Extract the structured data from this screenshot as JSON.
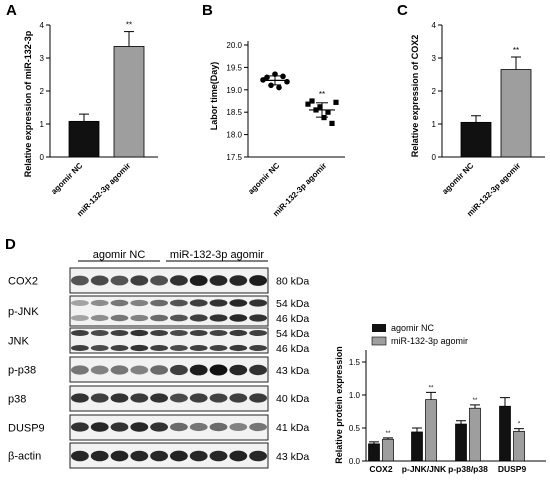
{
  "colors": {
    "black_bar": "#111111",
    "gray_bar": "#9e9e9e",
    "error": "#000000",
    "band": "#1a1a1a"
  },
  "panels": {
    "A": {
      "letter": "A",
      "ylabel": "Relative expression of miR-132-3p",
      "yticks": [
        "0",
        "1",
        "2",
        "3",
        "4"
      ],
      "groups": [
        "agomir NC",
        "miR-132-3p agomir"
      ],
      "sig": "**"
    },
    "B": {
      "letter": "B",
      "ylabel": "Labor time(Day)",
      "yticks": [
        "17.5",
        "18.0",
        "18.5",
        "19.0",
        "19.5",
        "20.0"
      ],
      "groups": [
        "agomir NC",
        "miR-132-3p agomir"
      ],
      "sig": "**"
    },
    "C": {
      "letter": "C",
      "ylabel": "Relative expression of COX2",
      "yticks": [
        "0",
        "1",
        "2",
        "3",
        "4"
      ],
      "groups": [
        "agomir NC",
        "miR-132-3p agomir"
      ],
      "sig": "**"
    },
    "D": {
      "letter": "D",
      "group_labels": [
        "agomir NC",
        "miR-132-3p agomir"
      ],
      "blots": [
        {
          "name": "COX2",
          "kda": [
            "80 kDa"
          ]
        },
        {
          "name": "p-JNK",
          "kda": [
            "54 kDa",
            "46 kDa"
          ]
        },
        {
          "name": "JNK",
          "kda": [
            "54 kDa",
            "46 kDa"
          ]
        },
        {
          "name": "p-p38",
          "kda": [
            "43 kDa"
          ]
        },
        {
          "name": "p38",
          "kda": [
            "40 kDa"
          ]
        },
        {
          "name": "DUSP9",
          "kda": [
            "41 kDa"
          ]
        },
        {
          "name": "β-actin",
          "kda": [
            "43 kDa"
          ]
        }
      ],
      "bar_chart": {
        "ylabel": "Relative protein expression",
        "yticks": [
          "0.0",
          "0.5",
          "1.0",
          "1.5"
        ],
        "legend": [
          "agomir NC",
          "miR-132-3p agomir"
        ],
        "categories": [
          "COX2",
          "p-JNK/JNK",
          "p-p38/p38",
          "DUSP9"
        ],
        "sig": [
          "**",
          "**",
          "**",
          "*"
        ]
      }
    }
  },
  "chart_data": [
    {
      "type": "bar",
      "panel": "A",
      "categories": [
        "agomir NC",
        "miR-132-3p agomir"
      ],
      "values": [
        1.08,
        3.35
      ],
      "errors": [
        0.22,
        0.45
      ],
      "colors": [
        "#111111",
        "#9e9e9e"
      ],
      "ylabel": "Relative expression of miR-132-3p",
      "ylim": [
        0,
        4
      ],
      "annotations": [
        "**"
      ]
    },
    {
      "type": "scatter",
      "panel": "B",
      "categories": [
        "agomir NC",
        "miR-132-3p agomir"
      ],
      "points": [
        [
          19.22,
          19.28,
          19.1,
          19.35,
          19.05,
          19.3,
          19.18
        ],
        [
          18.68,
          18.75,
          18.55,
          18.62,
          18.38,
          18.5,
          18.25,
          18.72
        ]
      ],
      "means": [
        19.21,
        18.55
      ],
      "errors": [
        0.1,
        0.16
      ],
      "ylabel": "Labor time(Day)",
      "ylim": [
        17.5,
        20.0
      ],
      "annotations": [
        "**"
      ]
    },
    {
      "type": "bar",
      "panel": "C",
      "categories": [
        "agomir NC",
        "miR-132-3p agomir"
      ],
      "values": [
        1.05,
        2.65
      ],
      "errors": [
        0.2,
        0.38
      ],
      "colors": [
        "#111111",
        "#9e9e9e"
      ],
      "ylabel": "Relative expression of COX2",
      "ylim": [
        0,
        4
      ],
      "annotations": [
        "**"
      ]
    },
    {
      "type": "bar",
      "panel": "D",
      "categories": [
        "COX2",
        "p-JNK/JNK",
        "p-p38/p38",
        "DUSP9"
      ],
      "series": [
        {
          "name": "agomir NC",
          "values": [
            0.26,
            0.44,
            0.56,
            0.83
          ],
          "errors": [
            0.03,
            0.06,
            0.05,
            0.13
          ]
        },
        {
          "name": "miR-132-3p agomir",
          "values": [
            0.33,
            0.93,
            0.8,
            0.45
          ],
          "errors": [
            0.02,
            0.11,
            0.05,
            0.04
          ]
        }
      ],
      "ylabel": "Relative protein expression",
      "ylim": [
        0,
        1.5
      ],
      "legend": "top-left",
      "annotations": [
        "**",
        "**",
        "**",
        "*"
      ]
    }
  ]
}
